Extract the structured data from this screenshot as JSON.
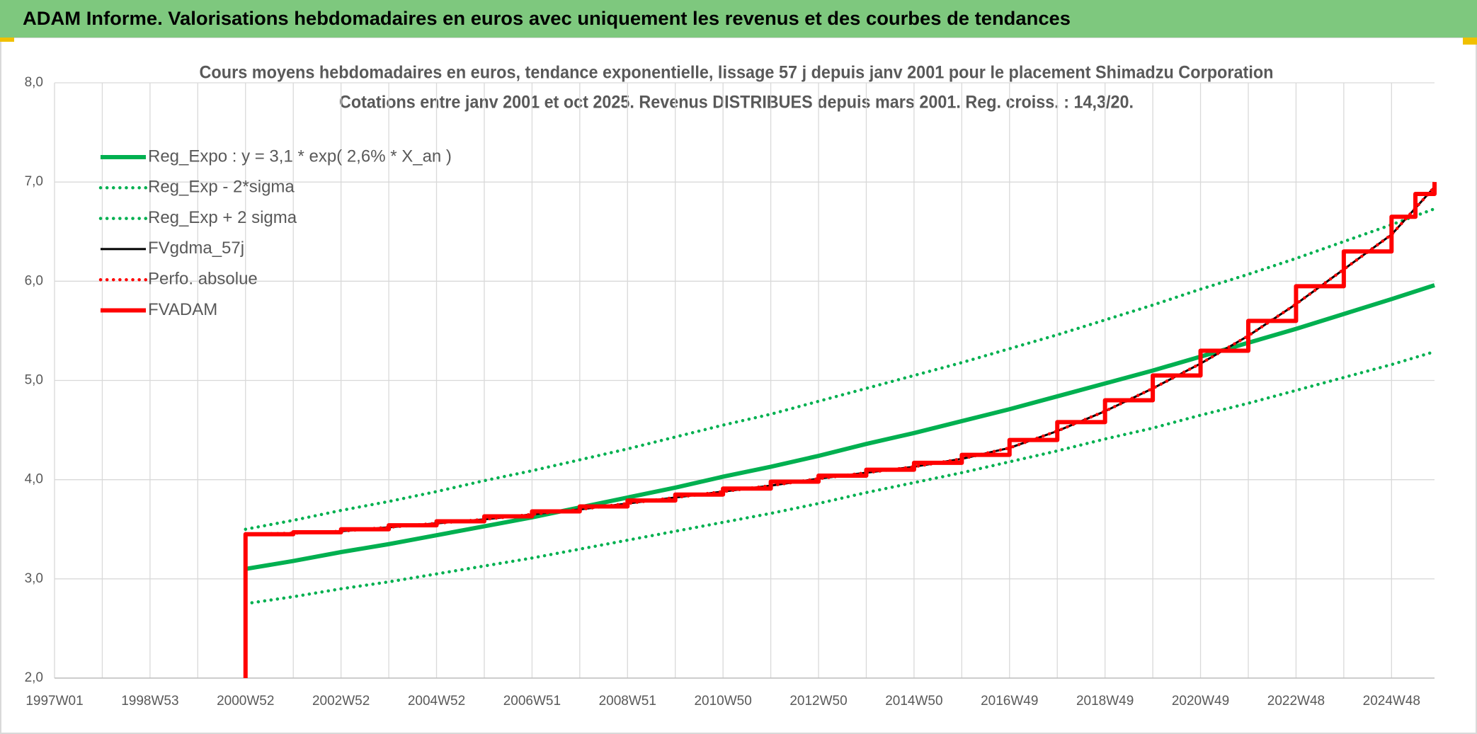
{
  "header": {
    "title": "ADAM Informe. Valorisations hebdomadaires en euros avec uniquement les revenus et des courbes de tendances"
  },
  "chart_data": {
    "type": "line",
    "title": "Cours moyens hebdomadaires en euros, tendance exponentielle, lissage 57 j depuis janv 2001 pour le placement Shimadzu Corporation",
    "subtitle": "Cotations entre janv 2001 et oct 2025. Revenus DISTRIBUES depuis mars 2001. Reg. croiss. : 14,3/20.",
    "xlim": [
      1997,
      2025.9
    ],
    "xticks": [
      {
        "value": 1997,
        "label": "1997W01"
      },
      {
        "value": 1999,
        "label": "1998W53"
      },
      {
        "value": 2001,
        "label": "2000W52"
      },
      {
        "value": 2003,
        "label": "2002W52"
      },
      {
        "value": 2005,
        "label": "2004W52"
      },
      {
        "value": 2007,
        "label": "2006W51"
      },
      {
        "value": 2009,
        "label": "2008W51"
      },
      {
        "value": 2011,
        "label": "2010W50"
      },
      {
        "value": 2013,
        "label": "2012W50"
      },
      {
        "value": 2015,
        "label": "2014W50"
      },
      {
        "value": 2017,
        "label": "2016W49"
      },
      {
        "value": 2019,
        "label": "2018W49"
      },
      {
        "value": 2021,
        "label": "2020W49"
      },
      {
        "value": 2023,
        "label": "2022W48"
      },
      {
        "value": 2025,
        "label": "2024W48"
      }
    ],
    "ylim": [
      2,
      8
    ],
    "yticks": [
      {
        "value": 2,
        "label": "2,0"
      },
      {
        "value": 3,
        "label": "3,0"
      },
      {
        "value": 4,
        "label": "4,0"
      },
      {
        "value": 5,
        "label": "5,0"
      },
      {
        "value": 6,
        "label": "6,0"
      },
      {
        "value": 7,
        "label": "7,0"
      },
      {
        "value": 8,
        "label": "8,0"
      }
    ],
    "grid": true,
    "legend": "top-left",
    "series": [
      {
        "name": "Reg_Expo : y = 3,1 * exp( 2,6% *  X_an )",
        "color": "#00b050",
        "style": "solid",
        "x": [
          2001,
          2002,
          2003,
          2004,
          2005,
          2006,
          2007,
          2008,
          2009,
          2010,
          2011,
          2012,
          2013,
          2014,
          2015,
          2016,
          2017,
          2018,
          2019,
          2020,
          2021,
          2022,
          2023,
          2024,
          2025,
          2025.9
        ],
        "values": [
          3.1,
          3.18,
          3.27,
          3.35,
          3.44,
          3.53,
          3.62,
          3.72,
          3.82,
          3.92,
          4.03,
          4.13,
          4.24,
          4.36,
          4.47,
          4.59,
          4.71,
          4.84,
          4.97,
          5.1,
          5.24,
          5.38,
          5.52,
          5.67,
          5.82,
          5.96
        ]
      },
      {
        "name": "Reg_Exp - 2*sigma",
        "color": "#00b050",
        "style": "dotted",
        "x": [
          2001,
          2002,
          2003,
          2004,
          2005,
          2006,
          2007,
          2008,
          2009,
          2010,
          2011,
          2012,
          2013,
          2014,
          2015,
          2016,
          2017,
          2018,
          2019,
          2020,
          2021,
          2022,
          2023,
          2024,
          2025,
          2025.9
        ],
        "values": [
          2.75,
          2.82,
          2.9,
          2.97,
          3.05,
          3.13,
          3.21,
          3.3,
          3.39,
          3.48,
          3.57,
          3.66,
          3.76,
          3.87,
          3.97,
          4.07,
          4.18,
          4.29,
          4.41,
          4.52,
          4.65,
          4.77,
          4.9,
          5.03,
          5.16,
          5.29
        ]
      },
      {
        "name": "Reg_Exp + 2 sigma",
        "color": "#00b050",
        "style": "dotted",
        "x": [
          2001,
          2002,
          2003,
          2004,
          2005,
          2006,
          2007,
          2008,
          2009,
          2010,
          2011,
          2012,
          2013,
          2014,
          2015,
          2016,
          2017,
          2018,
          2019,
          2020,
          2021,
          2022,
          2023,
          2024,
          2025,
          2025.9
        ],
        "values": [
          3.5,
          3.59,
          3.69,
          3.78,
          3.88,
          3.99,
          4.09,
          4.2,
          4.31,
          4.43,
          4.55,
          4.66,
          4.79,
          4.92,
          5.05,
          5.18,
          5.32,
          5.46,
          5.61,
          5.76,
          5.92,
          6.07,
          6.23,
          6.4,
          6.57,
          6.73
        ]
      },
      {
        "name": "FVgdma_57j",
        "color": "#000000",
        "style": "solid",
        "x": [
          2001,
          2002,
          2003,
          2004,
          2005,
          2006,
          2007,
          2008,
          2009,
          2010,
          2011,
          2012,
          2013,
          2014,
          2015,
          2016,
          2017,
          2018,
          2019,
          2020,
          2021,
          2022,
          2023,
          2024,
          2025,
          2025.9
        ],
        "values": [
          3.45,
          3.46,
          3.48,
          3.52,
          3.56,
          3.6,
          3.65,
          3.7,
          3.76,
          3.82,
          3.88,
          3.94,
          4.01,
          4.07,
          4.13,
          4.21,
          4.32,
          4.49,
          4.69,
          4.92,
          5.17,
          5.45,
          5.77,
          6.12,
          6.47,
          6.95
        ]
      },
      {
        "name": "Perfo. absolue",
        "color": "#ff0000",
        "style": "dotted",
        "x": [
          2001,
          2002,
          2003,
          2004,
          2005,
          2006,
          2007,
          2008,
          2009,
          2010,
          2011,
          2012,
          2013,
          2014,
          2015,
          2016,
          2017,
          2018,
          2019,
          2020,
          2021,
          2022,
          2023,
          2024,
          2025,
          2025.9
        ],
        "values": [
          3.45,
          3.46,
          3.48,
          3.52,
          3.56,
          3.6,
          3.65,
          3.7,
          3.76,
          3.82,
          3.88,
          3.94,
          4.01,
          4.07,
          4.13,
          4.21,
          4.32,
          4.49,
          4.69,
          4.92,
          5.17,
          5.45,
          5.77,
          6.12,
          6.47,
          6.95
        ]
      },
      {
        "name": "FVADAM",
        "color": "#ff0000",
        "style": "solid",
        "x": [
          2001,
          2001,
          2002,
          2002,
          2003,
          2003,
          2004,
          2004,
          2005,
          2005,
          2006,
          2006,
          2007,
          2007,
          2008,
          2008,
          2009,
          2009,
          2010,
          2010,
          2011,
          2011,
          2012,
          2012,
          2013,
          2013,
          2014,
          2014,
          2015,
          2015,
          2016,
          2016,
          2017,
          2017,
          2018,
          2018,
          2019,
          2019,
          2020,
          2020,
          2021,
          2021,
          2022,
          2022,
          2023,
          2023,
          2024,
          2024,
          2025,
          2025,
          2025.5,
          2025.5,
          2025.9,
          2025.9
        ],
        "values": [
          2,
          3.45,
          3.45,
          3.47,
          3.47,
          3.5,
          3.5,
          3.54,
          3.54,
          3.58,
          3.58,
          3.63,
          3.63,
          3.68,
          3.68,
          3.73,
          3.73,
          3.79,
          3.79,
          3.85,
          3.85,
          3.91,
          3.91,
          3.98,
          3.98,
          4.04,
          4.04,
          4.1,
          4.1,
          4.17,
          4.17,
          4.25,
          4.25,
          4.4,
          4.4,
          4.58,
          4.58,
          4.8,
          4.8,
          5.05,
          5.05,
          5.3,
          5.3,
          5.6,
          5.6,
          5.95,
          5.95,
          6.3,
          6.3,
          6.65,
          6.65,
          6.88,
          6.88,
          7
        ]
      }
    ]
  }
}
